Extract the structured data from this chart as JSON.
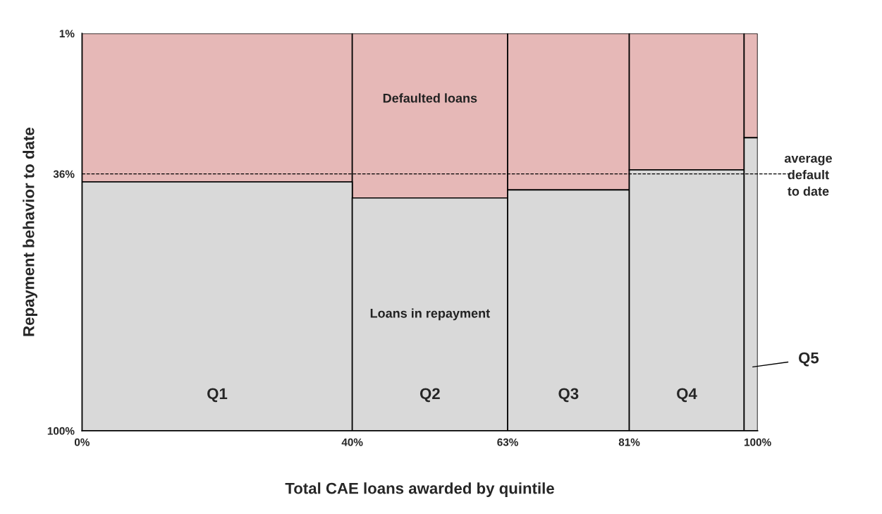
{
  "chart_data": {
    "type": "bar",
    "xlabel": "Total CAE loans awarded by quintile",
    "ylabel": "Repayment behavior to date",
    "x": [
      20,
      51.5,
      72,
      89.5,
      99
    ],
    "annotations": [
      "Q1",
      "Q2",
      "Q3",
      "Q4",
      "Q5"
    ],
    "series": [
      {
        "name": "Defaulted loans",
        "color": "#e6b8b7",
        "base": [
          1,
          1,
          1,
          1,
          1
        ],
        "values": [
          37,
          41,
          39,
          34,
          26
        ]
      },
      {
        "name": "Loans in repayment",
        "color": "#d9d9d9",
        "base": [
          38,
          42,
          40,
          35,
          27
        ],
        "values": [
          62,
          58,
          60,
          65,
          73
        ]
      }
    ],
    "xlim": [
      0,
      100
    ],
    "xticks": [
      {
        "value": 0,
        "label": "0%"
      },
      {
        "value": 40,
        "label": "40%"
      },
      {
        "value": 63,
        "label": "63%"
      },
      {
        "value": 81,
        "label": "81%"
      },
      {
        "value": 100,
        "label": "100%"
      }
    ],
    "ylim": [
      100,
      1
    ],
    "yticks": [
      {
        "value": 1,
        "label": "1%"
      },
      {
        "value": 36,
        "label": "36%"
      },
      {
        "value": 100,
        "label": "100%"
      }
    ],
    "ref_lines": [
      {
        "axis": "y",
        "value": 36,
        "label": "average\ndefault\nto date",
        "line_style": "dashed",
        "color": "#000000"
      }
    ],
    "legend": false
  }
}
